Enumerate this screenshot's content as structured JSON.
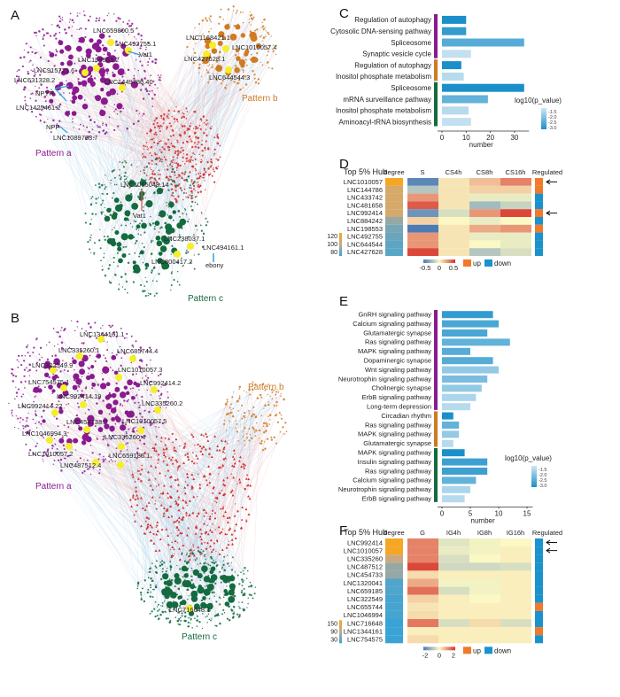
{
  "panels": {
    "A": "A",
    "B": "B",
    "C": "C",
    "D": "D",
    "E": "E",
    "F": "F"
  },
  "chart_data": [
    {
      "type": "network",
      "panel": "A",
      "patterns": [
        "Pattern a",
        "Pattern b",
        "Pattern c"
      ],
      "pattern_colors": [
        "#8b1a8f",
        "#d07a22",
        "#136b3f"
      ],
      "core_color": "#d12a2a",
      "hub_color": "#f5ee2a",
      "labels": [
        "LNC659800.5",
        "LNC492755.1",
        "Vat1",
        "LNC198563.2",
        "LNC915721.6",
        "LNC631328.2",
        "LNC1449786.40",
        "NPYR",
        "LNC1425461.2",
        "NPF",
        "LNC1089763.7",
        "LNC1168421.1",
        "LNC1010057.4",
        "LNC427628.1",
        "LNC644544.3",
        "LNC1065048.14",
        "Vat1",
        "LNC238037.1",
        "LNC494161.1",
        "LNC800417.2",
        "ebony"
      ]
    },
    {
      "type": "network",
      "panel": "B",
      "patterns": [
        "Pattern a",
        "Pattern b",
        "Pattern c"
      ],
      "labels": [
        "LNC1344161.1",
        "LNC335260.1",
        "LNC685744.4",
        "LNC322549.9",
        "LNC1010057.3",
        "LNC754575.1",
        "LNC992414.2",
        "LNC992414.19",
        "LNC992414.22",
        "LNC335260.2",
        "LNC454733.2",
        "LNC1010057.5",
        "LNC1046994.3",
        "LNC335260.4",
        "LNC1010057.2",
        "LNC659185.1",
        "LNC487512.4",
        "LNC716648.1"
      ]
    },
    {
      "type": "bar",
      "panel": "C",
      "orientation": "horizontal",
      "xlabel": "number",
      "xticks": [
        0,
        10,
        20,
        30
      ],
      "xlim": [
        0,
        36
      ],
      "legend_title": "log10(p_value)",
      "legend_ticks": [
        "-1.5",
        "-2.0",
        "-2.5",
        "-3.0"
      ],
      "color_range": [
        -3.0,
        -1.5
      ],
      "groups": [
        {
          "pattern": "a",
          "color": "#8b1a8f",
          "items": [
            {
              "term": "Regulation of autophagy",
              "number": 10,
              "log10p": -3.0
            },
            {
              "term": "Cytosolic DNA-sensing pathway",
              "number": 10,
              "log10p": -2.8
            },
            {
              "term": "Spliceosome",
              "number": 34,
              "log10p": -2.5
            },
            {
              "term": "Synaptic vesicle cycle",
              "number": 12,
              "log10p": -1.6
            }
          ]
        },
        {
          "pattern": "b",
          "color": "#d07a22",
          "items": [
            {
              "term": "Regulation of autophagy",
              "number": 8,
              "log10p": -3.0
            },
            {
              "term": "Inositol phosphate metabolism",
              "number": 9,
              "log10p": -1.7
            }
          ]
        },
        {
          "pattern": "c",
          "color": "#136b3f",
          "items": [
            {
              "term": "Spliceosome",
              "number": 34,
              "log10p": -3.0
            },
            {
              "term": "mRNA surveillance pathway",
              "number": 19,
              "log10p": -2.4
            },
            {
              "term": "Inositol phosphate metabolism",
              "number": 11,
              "log10p": -1.7
            },
            {
              "term": "Aminoacyl-tRNA biosynthesis",
              "number": 12,
              "log10p": -1.6
            }
          ]
        }
      ]
    },
    {
      "type": "heatmap",
      "panel": "D",
      "row_title": "Top 5% Hub",
      "degree_label": "degree",
      "regulated_label": "Regulated",
      "columns": [
        "S",
        "CS4h",
        "CS8h",
        "CS16h"
      ],
      "rows": [
        "LNC1010057",
        "LNC144786",
        "LNC433742",
        "LNC481658",
        "LNC992414",
        "LNC884242",
        "LNC198553",
        "LNC492755",
        "LNC644544",
        "LNC427628"
      ],
      "degree": [
        125,
        110,
        110,
        110,
        110,
        95,
        90,
        88,
        86,
        85
      ],
      "degree_ticks": [
        "120",
        "100",
        "80"
      ],
      "degree_range": [
        80,
        125
      ],
      "values": [
        [
          -0.45,
          0.05,
          0.15,
          0.3
        ],
        [
          -0.2,
          0.05,
          0.1,
          0.1
        ],
        [
          0.25,
          0.05,
          -0.05,
          -0.05
        ],
        [
          0.4,
          0.05,
          -0.25,
          -0.15
        ],
        [
          -0.4,
          -0.1,
          0.25,
          0.45
        ],
        [
          0.1,
          0.0,
          -0.05,
          0.0
        ],
        [
          -0.5,
          0.05,
          0.2,
          0.25
        ],
        [
          0.25,
          0.05,
          -0.05,
          -0.05
        ],
        [
          0.25,
          0.05,
          0.0,
          -0.05
        ],
        [
          0.45,
          0.05,
          -0.2,
          -0.1
        ]
      ],
      "value_range": [
        -0.5,
        0.5
      ],
      "scale_ticks": [
        "-0.5",
        "0",
        "0.5"
      ],
      "regulated": [
        "up",
        "up",
        "down",
        "down",
        "up",
        "down",
        "up",
        "down",
        "down",
        "down"
      ],
      "arrows": [
        0,
        4
      ],
      "reg_legend": [
        "up",
        "down"
      ],
      "reg_colors": {
        "up": "#f07a2a",
        "down": "#1a93cc"
      }
    },
    {
      "type": "bar",
      "panel": "E",
      "orientation": "horizontal",
      "xlabel": "number",
      "xticks": [
        0,
        5,
        10,
        15
      ],
      "xlim": [
        0,
        16
      ],
      "legend_title": "log10(p_value)",
      "legend_ticks": [
        "-1.5",
        "-2.0",
        "-2.5",
        "-3.0"
      ],
      "color_range": [
        -3.0,
        -1.5
      ],
      "groups": [
        {
          "pattern": "a",
          "color": "#8b1a8f",
          "items": [
            {
              "term": "GnRH signaling pathway",
              "number": 9,
              "log10p": -2.8
            },
            {
              "term": "Calcium signaling pathway",
              "number": 10,
              "log10p": -2.6
            },
            {
              "term": "Glutamatergic synapse",
              "number": 8,
              "log10p": -2.6
            },
            {
              "term": "Ras signaling pathway",
              "number": 12,
              "log10p": -2.4
            },
            {
              "term": "MAPK signaling pathway",
              "number": 5,
              "log10p": -2.5
            },
            {
              "term": "Dopaminergic synapse",
              "number": 9,
              "log10p": -2.5
            },
            {
              "term": "Wnt signaling pathway",
              "number": 10,
              "log10p": -2.0
            },
            {
              "term": "Neurotrophin signaling pathway",
              "number": 8,
              "log10p": -2.2
            },
            {
              "term": "Cholinergic synapse",
              "number": 7,
              "log10p": -2.0
            },
            {
              "term": "ErbB signaling pathway",
              "number": 6,
              "log10p": -1.8
            },
            {
              "term": "Long-term depression",
              "number": 5,
              "log10p": -1.7
            }
          ]
        },
        {
          "pattern": "b",
          "color": "#d07a22",
          "items": [
            {
              "term": "Circadian rhythm",
              "number": 2,
              "log10p": -3.0
            },
            {
              "term": "Ras signaling pathway",
              "number": 3,
              "log10p": -2.4
            },
            {
              "term": "MAPK signaling pathway",
              "number": 3,
              "log10p": -2.0
            },
            {
              "term": "Glutamatergic synapse",
              "number": 2,
              "log10p": -1.7
            }
          ]
        },
        {
          "pattern": "c",
          "color": "#136b3f",
          "items": [
            {
              "term": "MAPK signaling pathway",
              "number": 4,
              "log10p": -3.0
            },
            {
              "term": "Insulin signaling pathway",
              "number": 8,
              "log10p": -2.7
            },
            {
              "term": "Ras signaling pathway",
              "number": 8,
              "log10p": -2.7
            },
            {
              "term": "Calcium signaling pathway",
              "number": 6,
              "log10p": -2.4
            },
            {
              "term": "Neurotrophin signaling pathway",
              "number": 5,
              "log10p": -1.8
            },
            {
              "term": "ErbB signaling pathway",
              "number": 4,
              "log10p": -1.7
            }
          ]
        }
      ]
    },
    {
      "type": "heatmap",
      "panel": "F",
      "row_title": "Top 5% Hub",
      "degree_label": "degree",
      "regulated_label": "Regulated",
      "columns": [
        "G",
        "IG4h",
        "IG8h",
        "IG16h"
      ],
      "rows": [
        "LNC992414",
        "LNC1010057",
        "LNC335260",
        "LNC487512",
        "LNC454733",
        "LNC1320041",
        "LNC659185",
        "LNC322549",
        "LNC655744",
        "LNC1046994",
        "LNC716648",
        "LNC1344161",
        "LNC754575"
      ],
      "degree": [
        150,
        150,
        100,
        70,
        70,
        40,
        40,
        35,
        35,
        35,
        30,
        30,
        30
      ],
      "degree_ticks": [
        "150",
        "90",
        "30"
      ],
      "degree_range": [
        30,
        150
      ],
      "values": [
        [
          1.2,
          -0.3,
          -0.1,
          0.0
        ],
        [
          1.2,
          -0.2,
          -0.1,
          0.1
        ],
        [
          1.2,
          -0.4,
          0.0,
          0.1
        ],
        [
          1.8,
          -0.5,
          -0.5,
          -0.4
        ],
        [
          0.3,
          0.1,
          0.1,
          0.1
        ],
        [
          0.8,
          -0.1,
          -0.1,
          0.1
        ],
        [
          1.4,
          -0.4,
          -0.1,
          0.1
        ],
        [
          0.4,
          0.1,
          0.0,
          0.1
        ],
        [
          0.2,
          0.1,
          0.1,
          0.1
        ],
        [
          0.3,
          0.1,
          0.1,
          0.1
        ],
        [
          1.3,
          -0.4,
          0.3,
          -0.4
        ],
        [
          0.1,
          0.1,
          0.1,
          0.1
        ],
        [
          0.3,
          0.1,
          0.1,
          0.1
        ]
      ],
      "value_range": [
        -2,
        2
      ],
      "scale_ticks": [
        "-2",
        "0",
        "2"
      ],
      "regulated": [
        "down",
        "down",
        "down",
        "down",
        "down",
        "down",
        "down",
        "down",
        "up",
        "down",
        "down",
        "up",
        "down"
      ],
      "arrows": [
        0,
        1
      ],
      "reg_legend": [
        "up",
        "down"
      ],
      "reg_colors": {
        "up": "#f07a2a",
        "down": "#1a93cc"
      }
    }
  ]
}
